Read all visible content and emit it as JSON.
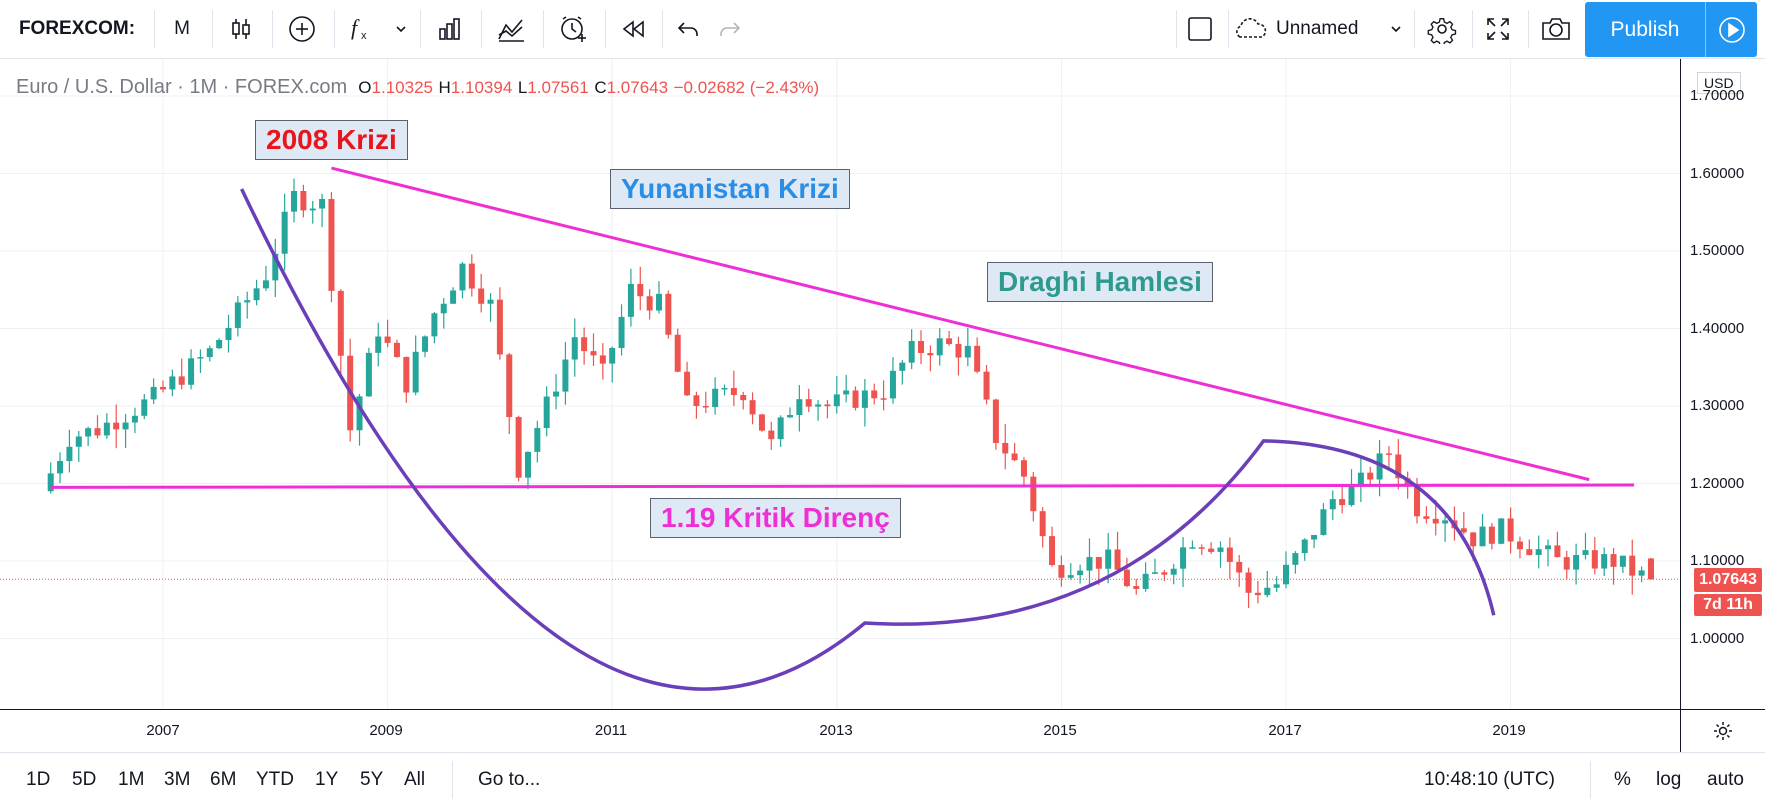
{
  "toolbar": {
    "symbol": "FOREXCOM:",
    "interval": "M",
    "chart_name": "Unnamed",
    "publish_label": "Publish"
  },
  "legend": {
    "pair": "Euro / U.S. Dollar · 1M · FOREX.com",
    "o_label": "O",
    "o_value": "1.10325",
    "h_label": "H",
    "h_value": "1.10394",
    "l_label": "L",
    "l_value": "1.07561",
    "c_label": "C",
    "c_value": "1.07643",
    "change": "−0.02682 (−2.43%)"
  },
  "annotations": {
    "crisis_2008": "2008 Krizi",
    "greek_crisis": "Yunanistan Krizi",
    "draghi": "Draghi Hamlesi",
    "resistance": "1.19 Kritik Direnç"
  },
  "colors": {
    "up": "#26a69a",
    "down": "#ef5350",
    "trendline": "#ef2fd6",
    "curve": "#6a3fb8",
    "accent": "#2196f3",
    "anno_red": "#e8161c",
    "anno_blue": "#2a8ee6",
    "anno_teal": "#2e9a8e",
    "anno_magenta": "#ef2fd6"
  },
  "yaxis": {
    "currency": "USD",
    "ticks": [
      "1.70000",
      "1.60000",
      "1.50000",
      "1.40000",
      "1.30000",
      "1.20000",
      "1.10000",
      "1.00000"
    ],
    "last_price": "1.07643",
    "countdown": "7d 11h"
  },
  "xaxis": {
    "ticks": [
      "2007",
      "2009",
      "2011",
      "2013",
      "2015",
      "2017",
      "2019"
    ]
  },
  "bottombar": {
    "ranges": [
      "1D",
      "5D",
      "1M",
      "3M",
      "6M",
      "YTD",
      "1Y",
      "5Y",
      "All"
    ],
    "goto": "Go to...",
    "time": "10:48:10 (UTC)",
    "percent": "%",
    "log": "log",
    "auto": "auto"
  },
  "icons": [
    "candles-icon",
    "add-indicator-icon",
    "fx-icon",
    "chevron-down-icon",
    "bar-icon",
    "compare-icon",
    "alert-icon",
    "replay-icon",
    "undo-icon",
    "redo-icon",
    "rectangle-icon",
    "cloud-icon",
    "gear-icon",
    "fullscreen-icon",
    "camera-icon",
    "play-icon"
  ],
  "chart_data": {
    "type": "candlestick",
    "timeframe": "1M",
    "x_range": [
      2006.0,
      2020.25
    ],
    "ylim": [
      0.92,
      1.72
    ],
    "series": [
      {
        "name": "Euro / U.S. Dollar",
        "x": [
          2006.0,
          2006.25,
          2006.5,
          2006.75,
          2007.0,
          2007.25,
          2007.5,
          2007.75,
          2008.0,
          2008.25,
          2008.5,
          2008.75,
          2009.0,
          2009.25,
          2009.5,
          2009.75,
          2010.0,
          2010.25,
          2010.5,
          2010.75,
          2011.0,
          2011.25,
          2011.5,
          2011.75,
          2012.0,
          2012.25,
          2012.5,
          2012.75,
          2013.0,
          2013.25,
          2013.5,
          2013.75,
          2014.0,
          2014.25,
          2014.5,
          2014.75,
          2015.0,
          2015.25,
          2015.5,
          2015.75,
          2016.0,
          2016.25,
          2016.5,
          2016.75,
          2017.0,
          2017.25,
          2017.5,
          2017.75,
          2018.0,
          2018.25,
          2018.5,
          2018.75,
          2019.0,
          2019.25,
          2019.5,
          2019.75,
          2020.0,
          2020.25
        ],
        "close": [
          1.19,
          1.26,
          1.27,
          1.29,
          1.31,
          1.34,
          1.37,
          1.42,
          1.47,
          1.57,
          1.56,
          1.27,
          1.4,
          1.33,
          1.42,
          1.48,
          1.43,
          1.22,
          1.3,
          1.39,
          1.34,
          1.45,
          1.43,
          1.3,
          1.31,
          1.32,
          1.25,
          1.32,
          1.3,
          1.31,
          1.32,
          1.37,
          1.38,
          1.37,
          1.26,
          1.21,
          1.09,
          1.1,
          1.1,
          1.06,
          1.09,
          1.13,
          1.12,
          1.06,
          1.07,
          1.12,
          1.18,
          1.2,
          1.24,
          1.17,
          1.16,
          1.13,
          1.14,
          1.12,
          1.1,
          1.1,
          1.1,
          1.08
        ]
      }
    ],
    "lines": [
      {
        "name": "trendline",
        "from": [
          "2008.5",
          1.607
        ],
        "to": [
          "2019.7",
          1.205
        ]
      },
      {
        "name": "resistance",
        "from": [
          "2006.0",
          1.195
        ],
        "to": [
          "2020.1",
          1.198
        ]
      }
    ]
  }
}
